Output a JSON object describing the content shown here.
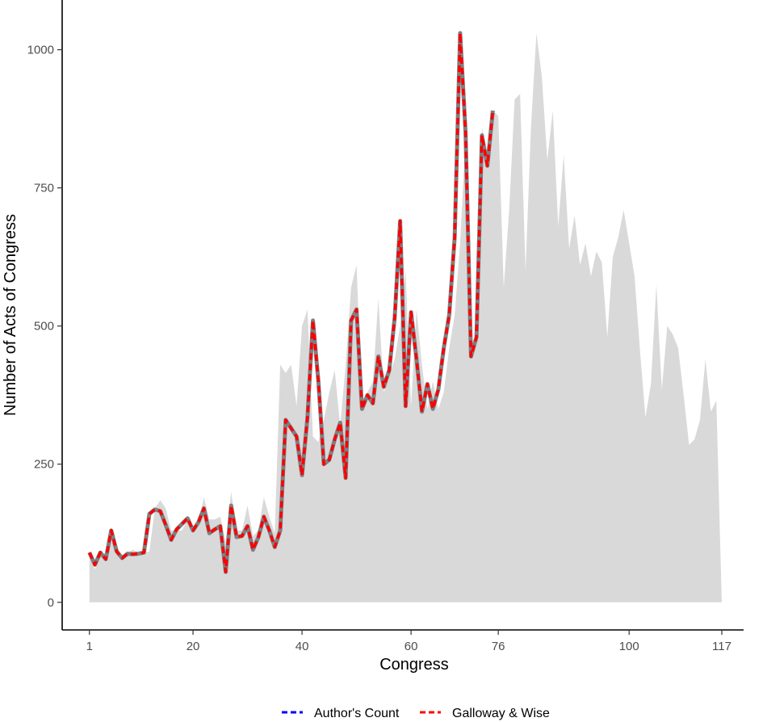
{
  "chart_data": {
    "type": "line",
    "xlabel": "Congress",
    "ylabel": "Number of Acts of Congress",
    "xlim": [
      -4,
      121
    ],
    "ylim": [
      -50,
      1090
    ],
    "x_ticks": [
      1,
      20,
      40,
      60,
      76,
      100,
      117
    ],
    "y_ticks": [
      0,
      250,
      500,
      750,
      1000
    ],
    "grid": false,
    "legend_position": "bottom",
    "area_series": {
      "color": "#d9d9d9",
      "x": [
        1,
        2,
        3,
        4,
        5,
        6,
        7,
        8,
        9,
        10,
        11,
        12,
        13,
        14,
        15,
        16,
        17,
        18,
        19,
        20,
        21,
        22,
        23,
        24,
        25,
        26,
        27,
        28,
        29,
        30,
        31,
        32,
        33,
        34,
        35,
        36,
        37,
        38,
        39,
        40,
        41,
        42,
        43,
        44,
        45,
        46,
        47,
        48,
        49,
        50,
        51,
        52,
        53,
        54,
        55,
        56,
        57,
        58,
        59,
        60,
        61,
        62,
        63,
        64,
        65,
        66,
        67,
        68,
        69,
        70,
        71,
        72,
        73,
        74,
        75,
        76,
        77,
        78,
        79,
        80,
        81,
        82,
        83,
        84,
        85,
        86,
        87,
        88,
        89,
        90,
        91,
        92,
        93,
        94,
        95,
        96,
        97,
        98,
        99,
        100,
        101,
        102,
        103,
        104,
        105,
        106,
        107,
        108,
        109,
        110,
        111,
        112,
        113,
        114,
        115,
        116,
        117
      ],
      "values": [
        80,
        60,
        85,
        90,
        110,
        100,
        85,
        90,
        95,
        90,
        90,
        92,
        170,
        185,
        170,
        130,
        130,
        130,
        150,
        135,
        145,
        190,
        150,
        150,
        155,
        110,
        200,
        130,
        130,
        175,
        120,
        130,
        190,
        155,
        125,
        430,
        415,
        430,
        355,
        500,
        530,
        300,
        290,
        330,
        380,
        420,
        320,
        430,
        570,
        610,
        360,
        380,
        400,
        550,
        380,
        410,
        440,
        500,
        600,
        355,
        530,
        430,
        350,
        400,
        350,
        380,
        460,
        520,
        650,
        840,
        450,
        480,
        860,
        810,
        890,
        880,
        570,
        710,
        910,
        920,
        600,
        860,
        1030,
        950,
        800,
        890,
        680,
        810,
        640,
        700,
        610,
        650,
        590,
        635,
        615,
        480,
        625,
        660,
        710,
        650,
        590,
        455,
        335,
        395,
        575,
        385,
        500,
        485,
        460,
        375,
        285,
        295,
        330,
        440,
        345,
        365,
        0
      ]
    },
    "series": [
      {
        "name": "Author's Count",
        "color": "#0000ff",
        "x": [
          1,
          2,
          3,
          4,
          5,
          6,
          7,
          8,
          9,
          10,
          11,
          12,
          13,
          14,
          15,
          16,
          17,
          18,
          19,
          20,
          21,
          22,
          23,
          24,
          25,
          26,
          27,
          28,
          29,
          30,
          31,
          32,
          33,
          34,
          35,
          36,
          37,
          38,
          39,
          40,
          41,
          42,
          43,
          44,
          45,
          46,
          47,
          48,
          49,
          50,
          51,
          52,
          53,
          54,
          55,
          56,
          57,
          58,
          59,
          60,
          61,
          62,
          63,
          64,
          65,
          66,
          67,
          68,
          69,
          70,
          71,
          72,
          73,
          74,
          75
        ],
        "values": [
          90,
          68,
          90,
          78,
          130,
          92,
          80,
          88,
          87,
          88,
          90,
          160,
          168,
          165,
          140,
          113,
          132,
          142,
          152,
          130,
          145,
          170,
          125,
          132,
          138,
          55,
          175,
          118,
          120,
          138,
          95,
          118,
          155,
          130,
          100,
          130,
          330,
          315,
          300,
          230,
          335,
          510,
          400,
          250,
          258,
          295,
          325,
          225,
          510,
          530,
          350,
          375,
          360,
          445,
          390,
          420,
          515,
          690,
          355,
          525,
          440,
          345,
          395,
          350,
          385,
          460,
          520,
          660,
          1030,
          850,
          445,
          480,
          845,
          790,
          890
        ]
      },
      {
        "name": "Galloway & Wise",
        "color": "#ff0000",
        "x": [
          1,
          2,
          3,
          4,
          5,
          6,
          7,
          8,
          9,
          10,
          11,
          12,
          13,
          14,
          15,
          16,
          17,
          18,
          19,
          20,
          21,
          22,
          23,
          24,
          25,
          26,
          27,
          28,
          29,
          30,
          31,
          32,
          33,
          34,
          35,
          36,
          37,
          38,
          39,
          40,
          41,
          42,
          43,
          44,
          45,
          46,
          47,
          48,
          49,
          50,
          51,
          52,
          53,
          54,
          55,
          56,
          57,
          58,
          59,
          60,
          61,
          62,
          63,
          64,
          65,
          66,
          67,
          68,
          69,
          70,
          71,
          72,
          73,
          74,
          75
        ],
        "values": [
          90,
          68,
          90,
          78,
          130,
          92,
          80,
          88,
          87,
          88,
          90,
          160,
          168,
          165,
          140,
          113,
          132,
          142,
          152,
          130,
          145,
          170,
          125,
          132,
          138,
          55,
          175,
          118,
          120,
          138,
          95,
          118,
          155,
          130,
          100,
          130,
          330,
          315,
          300,
          230,
          335,
          510,
          400,
          250,
          258,
          295,
          325,
          225,
          510,
          530,
          350,
          375,
          360,
          445,
          390,
          420,
          515,
          690,
          355,
          525,
          440,
          345,
          395,
          350,
          385,
          460,
          520,
          660,
          1030,
          850,
          445,
          480,
          845,
          790,
          890
        ]
      }
    ]
  }
}
